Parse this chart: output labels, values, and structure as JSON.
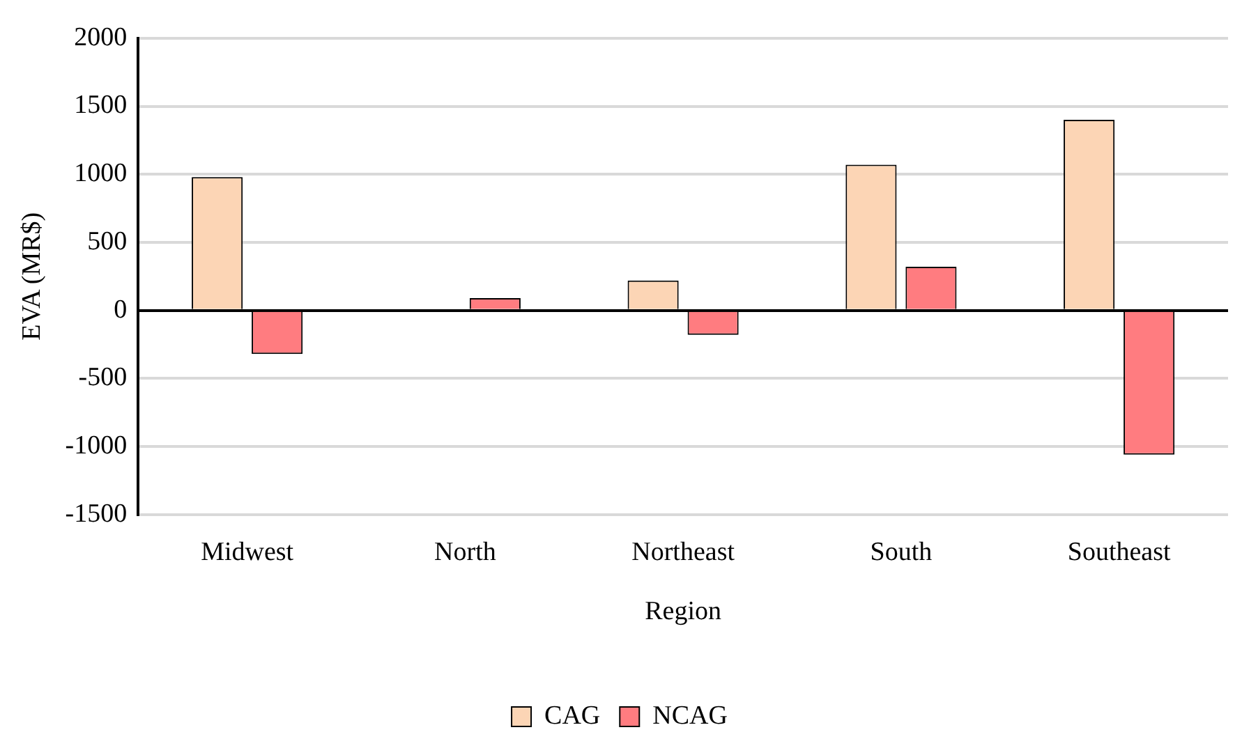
{
  "chart_data": {
    "type": "bar",
    "xlabel": "Region",
    "ylabel": "EVA (MR$)",
    "categories": [
      "Midwest",
      "North",
      "Northeast",
      "South",
      "Southeast"
    ],
    "series": [
      {
        "name": "CAG",
        "color": "#fcd5b5",
        "values": [
          980,
          null,
          220,
          1070,
          1400
        ]
      },
      {
        "name": "NCAG",
        "color": "#ff7c80",
        "values": [
          -320,
          90,
          -180,
          320,
          -1060
        ]
      }
    ],
    "ylim": [
      -1500,
      2000
    ],
    "yticks": [
      -1500,
      -1000,
      -500,
      0,
      500,
      1000,
      1500,
      2000
    ],
    "grid": "y",
    "legend": "bottom"
  }
}
